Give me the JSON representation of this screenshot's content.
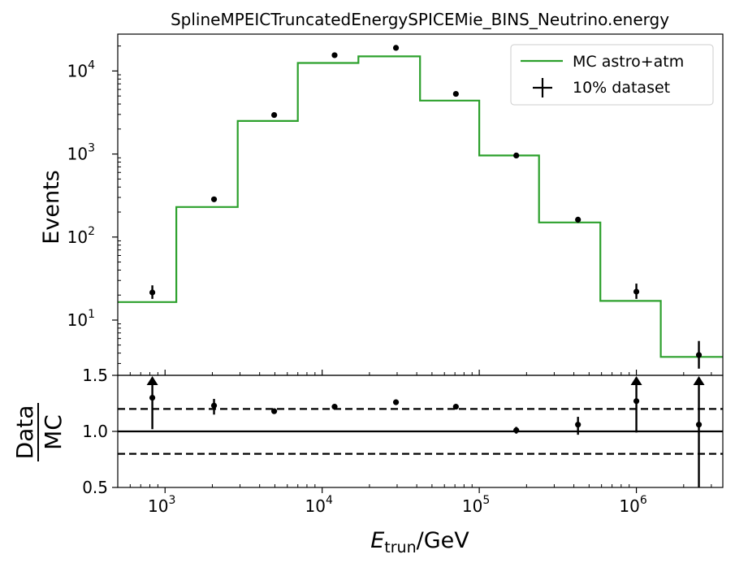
{
  "chart_data": [
    {
      "type": "line",
      "title": "SplineMPEICTruncatedEnergySPICEMie_BINS_Neutrino.energy",
      "ylabel": "Events",
      "xscale": "log",
      "yscale": "log",
      "xlim": [
        500,
        3550000
      ],
      "ylim": [
        2.16,
        27800
      ],
      "legend_position": "top-right",
      "bin_edges": [
        500,
        1180,
        2900,
        7000,
        17000,
        42000,
        100000,
        240000,
        590000,
        1430000,
        3550000
      ],
      "series": [
        {
          "name": "MC astro+atm",
          "style": "step",
          "color": "#2ca02c",
          "values": [
            16.5,
            230,
            2500,
            12500,
            15000,
            4400,
            960,
            150,
            17,
            3.6
          ]
        },
        {
          "name": "10% dataset",
          "style": "points-with-errorbars",
          "color": "#000000",
          "x": [
            830,
            2050,
            4950,
            12000,
            29500,
            71000,
            172000,
            425000,
            1000000,
            2500000
          ],
          "y": [
            21.5,
            285,
            2950,
            15500,
            19000,
            5300,
            960,
            162,
            22,
            3.8
          ],
          "err_low": [
            3.5,
            16,
            55,
            125,
            140,
            70,
            30,
            13,
            4,
            1.2
          ],
          "err_high": [
            4.7,
            18,
            55,
            125,
            140,
            70,
            30,
            13,
            5.5,
            1.8
          ]
        }
      ],
      "x_ticks": [
        {
          "value": 1000,
          "base": "10",
          "exp": "3"
        },
        {
          "value": 10000,
          "base": "10",
          "exp": "4"
        },
        {
          "value": 100000,
          "base": "10",
          "exp": "5"
        },
        {
          "value": 1000000,
          "base": "10",
          "exp": "6"
        }
      ],
      "y_ticks": [
        {
          "value": 10,
          "base": "10",
          "exp": "1"
        },
        {
          "value": 100,
          "base": "10",
          "exp": "2"
        },
        {
          "value": 1000,
          "base": "10",
          "exp": "3"
        },
        {
          "value": 10000,
          "base": "10",
          "exp": "4"
        }
      ]
    },
    {
      "type": "scatter",
      "ylabel_top": "Data",
      "ylabel_bottom": "MC",
      "xlabel_main": "E",
      "xlabel_sub": "trun",
      "xlabel_unit": "/GeV",
      "xscale": "log",
      "xlim": [
        500,
        3550000
      ],
      "ylim": [
        0.5,
        1.5
      ],
      "reference_lines": [
        {
          "y": 1.0,
          "style": "solid"
        },
        {
          "y": 1.2,
          "style": "dashed"
        },
        {
          "y": 0.8,
          "style": "dashed"
        }
      ],
      "x": [
        830,
        2050,
        4950,
        12000,
        29500,
        71000,
        172000,
        425000,
        1000000,
        2500000
      ],
      "y": [
        1.3,
        1.23,
        1.18,
        1.22,
        1.26,
        1.22,
        1.01,
        1.06,
        1.27,
        1.06
      ],
      "err_low": [
        0.28,
        0.08,
        0.02,
        0.01,
        0.01,
        0.01,
        0.03,
        0.09,
        0.28,
        0.56
      ],
      "err_high": [
        0.2,
        0.06,
        0.02,
        0.01,
        0.01,
        0.01,
        0.03,
        0.07,
        0.23,
        0.44
      ],
      "arrows_above_top": [
        true,
        false,
        false,
        false,
        false,
        false,
        false,
        false,
        true,
        true
      ],
      "y_ticks": [
        "0.5",
        "1.0",
        "1.5"
      ],
      "x_ticks": [
        {
          "value": 1000,
          "base": "10",
          "exp": "3"
        },
        {
          "value": 10000,
          "base": "10",
          "exp": "4"
        },
        {
          "value": 100000,
          "base": "10",
          "exp": "5"
        },
        {
          "value": 1000000,
          "base": "10",
          "exp": "6"
        }
      ]
    }
  ]
}
